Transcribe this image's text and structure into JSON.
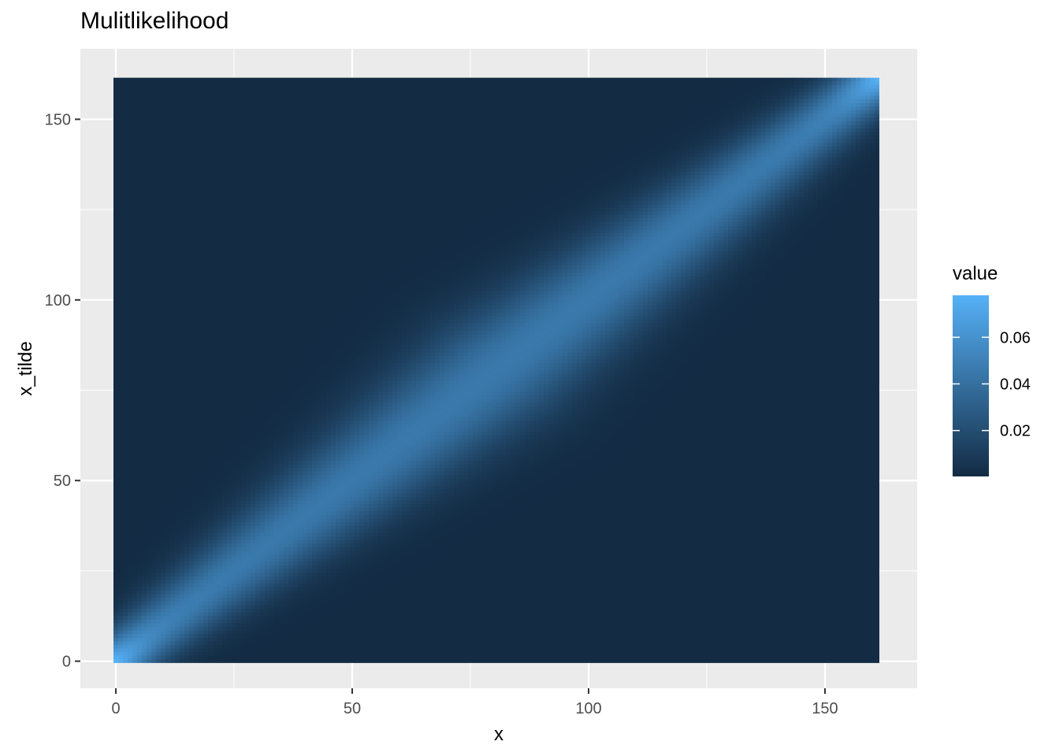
{
  "chart_data": {
    "type": "heatmap",
    "title": "Mulitlikelihood",
    "xlabel": "x",
    "ylabel": "x_tilde",
    "xlim": [
      -7.5,
      169.5
    ],
    "ylim": [
      -7.5,
      169.5
    ],
    "x_range": [
      0,
      161
    ],
    "y_range": [
      0,
      161
    ],
    "x_ticks": [
      0,
      50,
      100,
      150
    ],
    "y_ticks": [
      0,
      50,
      100,
      150
    ],
    "grid": true,
    "legend": {
      "title": "value",
      "position": "right",
      "breaks": [
        0.02,
        0.04,
        0.06
      ],
      "break_labels": [
        "0.02",
        "0.04",
        "0.06"
      ],
      "range": [
        0.0003,
        0.078
      ]
    },
    "colors": {
      "low": "#132B43",
      "high": "#56B1F7",
      "panel": "#EBEBEB",
      "grid": "#FFFFFF"
    },
    "pattern": "diagonal ridge along x_tilde = x; peak value near 0.078 at the corners (0,0) and (161,161), about 0.045 along the middle of the diagonal, near 0 away from the diagonal"
  }
}
